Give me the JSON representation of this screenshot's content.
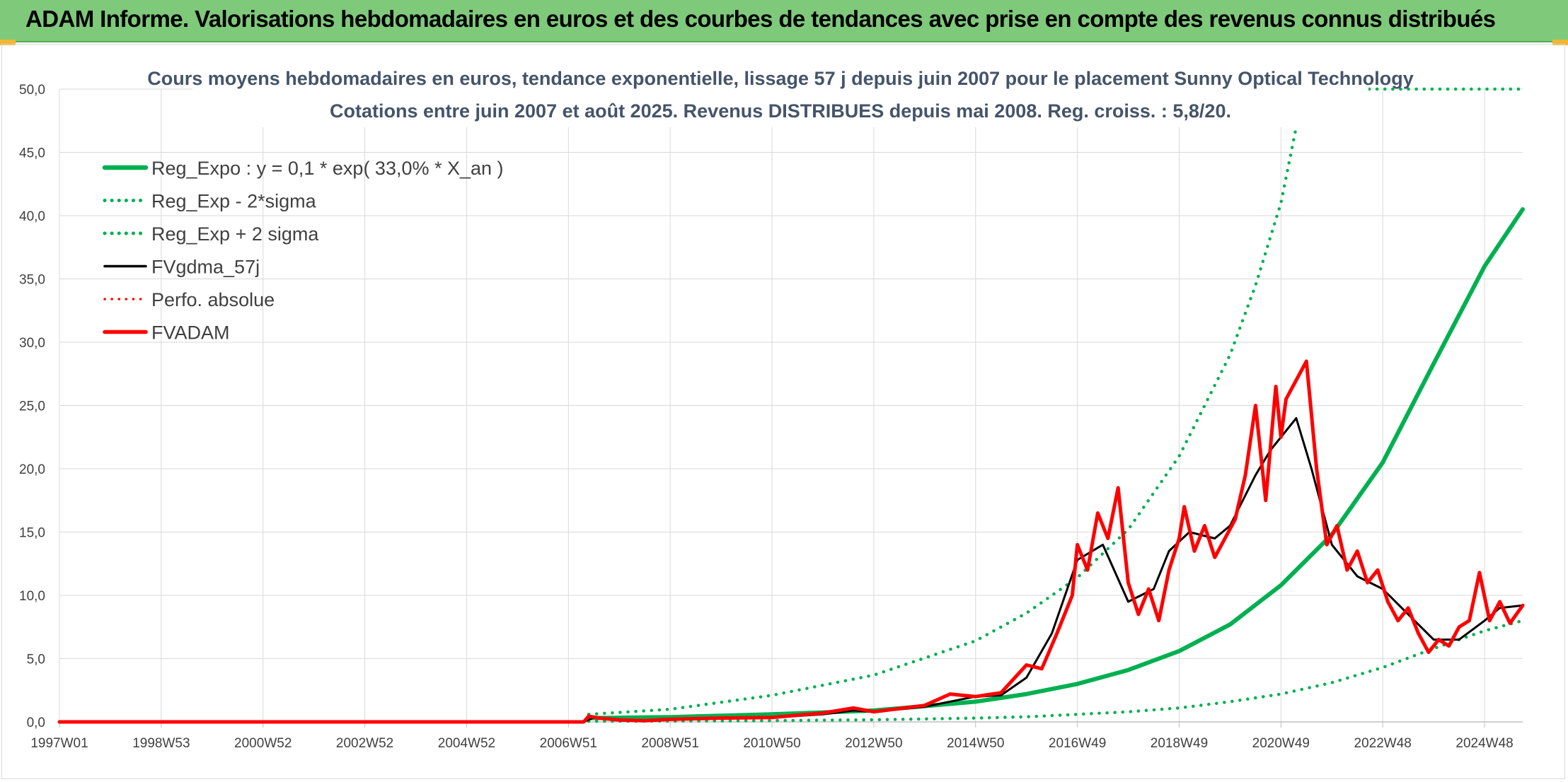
{
  "header": {
    "title": "ADAM Informe. Valorisations hebdomadaires en euros et des courbes de tendances avec prise en compte des revenus connus distribués"
  },
  "chart_data": {
    "type": "line",
    "title": "Cours moyens hebdomadaires en euros, tendance exponentielle, lissage 57 j depuis juin 2007 pour le placement Sunny Optical Technology",
    "subtitle": "Cotations entre juin 2007 et août 2025. Revenus DISTRIBUES depuis mai 2008. Reg. croiss. : 5,8/20.",
    "xlabel": "",
    "ylabel": "",
    "x_ticks": [
      "1997W01",
      "1998W53",
      "2000W52",
      "2002W52",
      "2004W52",
      "2006W51",
      "2008W51",
      "2010W50",
      "2012W50",
      "2014W50",
      "2016W49",
      "2018W49",
      "2020W49",
      "2022W48",
      "2024W48"
    ],
    "x_tick_years": [
      1997.0,
      1999.0,
      2001.0,
      2003.0,
      2005.0,
      2007.0,
      2009.0,
      2011.0,
      2013.0,
      2015.0,
      2017.0,
      2019.0,
      2021.0,
      2023.0,
      2025.0
    ],
    "x_range": [
      1997.0,
      2025.75
    ],
    "y_ticks": [
      "0,0",
      "5,0",
      "10,0",
      "15,0",
      "20,0",
      "25,0",
      "30,0",
      "35,0",
      "40,0",
      "45,0",
      "50,0"
    ],
    "ylim": [
      0,
      50
    ],
    "grid": true,
    "legend_position": "top-left",
    "series": [
      {
        "name": "Reg_Expo : y = 0,1 * exp( 33,0% *  X_an )",
        "color": "#00b050",
        "style": "solid",
        "x": [
          2007.4,
          2009,
          2011,
          2013,
          2015,
          2016,
          2017,
          2018,
          2019,
          2020,
          2021,
          2022,
          2023,
          2024,
          2025,
          2025.75
        ],
        "y": [
          0.3,
          0.38,
          0.6,
          0.9,
          1.6,
          2.2,
          3.0,
          4.1,
          5.6,
          7.7,
          10.8,
          14.8,
          20.5,
          28.3,
          36.0,
          40.5
        ]
      },
      {
        "name": "Reg_Exp - 2*sigma",
        "color": "#00b050",
        "style": "dotted",
        "x": [
          2007.4,
          2009,
          2011,
          2013,
          2015,
          2016,
          2017,
          2018,
          2019,
          2020,
          2021,
          2022,
          2023,
          2024,
          2025,
          2025.75
        ],
        "y": [
          0.05,
          0.06,
          0.1,
          0.17,
          0.3,
          0.4,
          0.6,
          0.8,
          1.1,
          1.6,
          2.2,
          3.1,
          4.3,
          5.8,
          7.2,
          8.0
        ]
      },
      {
        "name": "Reg_Exp + 2 sigma",
        "color": "#00b050",
        "style": "dotted",
        "x": [
          2007.4,
          2009,
          2011,
          2013,
          2015,
          2016,
          2017,
          2018,
          2019,
          2020,
          2020.5,
          2021,
          2021.3
        ],
        "y": [
          0.6,
          1.0,
          2.1,
          3.7,
          6.4,
          8.6,
          11.4,
          15.2,
          21.0,
          29.0,
          34.5,
          41.0,
          47.0
        ]
      },
      {
        "name": "FVgdma_57j",
        "color": "#000000",
        "style": "solid",
        "x": [
          1997.0,
          2007.3,
          2007.5,
          2008.0,
          2008.5,
          2009,
          2010,
          2011,
          2012,
          2012.6,
          2013,
          2014,
          2015,
          2015.5,
          2016,
          2016.5,
          2017,
          2017.5,
          2018,
          2018.5,
          2018.8,
          2019.2,
          2019.7,
          2020.0,
          2020.5,
          2020.8,
          2021.3,
          2021.6,
          2022.0,
          2022.5,
          2023.0,
          2023.5,
          2024.0,
          2024.5,
          2025.0,
          2025.3,
          2025.75
        ],
        "y": [
          0.0,
          0.0,
          0.35,
          0.2,
          0.1,
          0.2,
          0.3,
          0.35,
          0.6,
          0.9,
          0.8,
          1.2,
          2.0,
          2.1,
          3.5,
          7.0,
          12.8,
          14.0,
          9.5,
          10.5,
          13.5,
          15.0,
          14.5,
          15.5,
          19.5,
          21.5,
          24.0,
          20.0,
          14.0,
          11.5,
          10.5,
          8.5,
          6.5,
          6.5,
          8.0,
          9.0,
          9.2
        ]
      },
      {
        "name": "Perfo. absolue",
        "color": "#ff0000",
        "style": "dotted",
        "x": [
          1997.0,
          2007.3
        ],
        "y": [
          0.0,
          0.0
        ]
      },
      {
        "name": "FVADAM",
        "color": "#ff0000",
        "style": "solid",
        "x": [
          1997.0,
          2007.3,
          2007.4,
          2007.6,
          2008.0,
          2008.5,
          2009,
          2010,
          2011,
          2012,
          2012.6,
          2013,
          2014,
          2014.5,
          2015,
          2015.5,
          2016,
          2016.3,
          2016.6,
          2016.9,
          2017.0,
          2017.2,
          2017.4,
          2017.6,
          2017.8,
          2018.0,
          2018.2,
          2018.4,
          2018.6,
          2018.8,
          2019.0,
          2019.1,
          2019.3,
          2019.5,
          2019.7,
          2019.9,
          2020.1,
          2020.3,
          2020.5,
          2020.7,
          2020.9,
          2021.0,
          2021.1,
          2021.3,
          2021.5,
          2021.7,
          2021.9,
          2022.1,
          2022.3,
          2022.5,
          2022.7,
          2022.9,
          2023.1,
          2023.3,
          2023.5,
          2023.7,
          2023.9,
          2024.1,
          2024.3,
          2024.5,
          2024.7,
          2024.9,
          2025.1,
          2025.3,
          2025.5,
          2025.75
        ],
        "y": [
          0.0,
          0.0,
          0.45,
          0.3,
          0.15,
          0.1,
          0.2,
          0.3,
          0.35,
          0.7,
          1.1,
          0.8,
          1.3,
          2.2,
          2.0,
          2.3,
          4.5,
          4.2,
          7.0,
          10.0,
          14.0,
          12.0,
          16.5,
          14.5,
          18.5,
          11.0,
          8.5,
          10.5,
          8.0,
          12.0,
          14.5,
          17.0,
          13.5,
          15.5,
          13.0,
          14.5,
          16.0,
          19.5,
          25.0,
          17.5,
          26.5,
          22.5,
          25.5,
          27.0,
          28.5,
          20.0,
          14.0,
          15.5,
          12.0,
          13.5,
          11.0,
          12.0,
          9.5,
          8.0,
          9.0,
          7.0,
          5.5,
          6.5,
          6.0,
          7.5,
          8.0,
          11.8,
          8.0,
          9.5,
          7.8,
          9.2
        ]
      }
    ]
  }
}
